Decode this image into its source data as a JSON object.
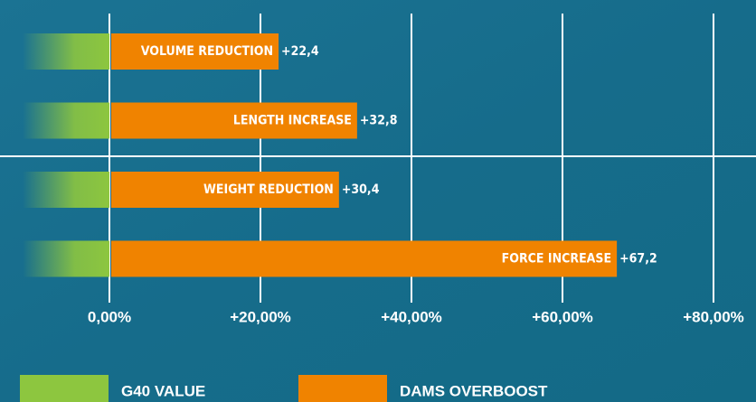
{
  "chart_data": {
    "type": "bar",
    "orientation": "horizontal",
    "categories": [
      "VOLUME REDUCTION",
      "LENGTH INCREASE",
      "WEIGHT REDUCTION",
      "FORCE INCREASE"
    ],
    "values": [
      22.4,
      32.8,
      30.4,
      67.2
    ],
    "value_labels": [
      "+22,4",
      "+32,8",
      "+30,4",
      "+67,2"
    ],
    "color": "#f08300",
    "xlim": [
      0,
      80
    ],
    "xticks": [
      {
        "value": 0,
        "label": "0,00%"
      },
      {
        "value": 20,
        "label": "+20,00%"
      },
      {
        "value": 40,
        "label": "+40,00%"
      },
      {
        "value": 60,
        "label": "+60,00%"
      },
      {
        "value": 80,
        "label": "+80,00%"
      }
    ],
    "grid": true,
    "legend": [
      {
        "name": "G40 VALUE",
        "color": "#8dc63f"
      },
      {
        "name": "DAMS OVERBOOST",
        "color": "#f08300"
      }
    ]
  }
}
